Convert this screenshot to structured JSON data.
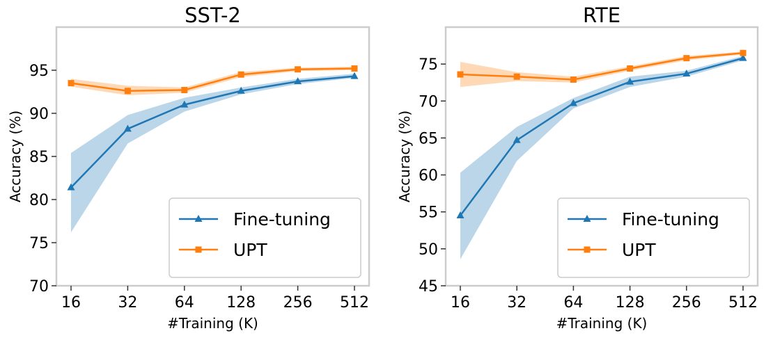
{
  "chart_data": [
    {
      "type": "line",
      "title": "SST-2",
      "xlabel": "#Training (K)",
      "ylabel": "Accuracy (%)",
      "categories": [
        "16",
        "32",
        "64",
        "128",
        "256",
        "512"
      ],
      "xscale": "log2",
      "ylim": [
        70,
        100
      ],
      "yticks": [
        70,
        75,
        80,
        85,
        90,
        95
      ],
      "grid": false,
      "legend_position": "lower-right",
      "series": [
        {
          "name": "Fine-tuning",
          "color": "#1f77b4",
          "marker": "triangle",
          "values": [
            81.4,
            88.2,
            91.0,
            92.6,
            93.7,
            94.3
          ],
          "lower": [
            76.2,
            86.5,
            90.2,
            92.2,
            93.4,
            94.1
          ],
          "upper": [
            85.4,
            89.8,
            91.8,
            93.0,
            94.0,
            94.6
          ]
        },
        {
          "name": "UPT",
          "color": "#ff7f0e",
          "marker": "square",
          "values": [
            93.5,
            92.6,
            92.7,
            94.5,
            95.1,
            95.2
          ],
          "lower": [
            93.1,
            92.1,
            92.4,
            94.2,
            94.9,
            95.0
          ],
          "upper": [
            94.0,
            93.2,
            93.0,
            94.8,
            95.3,
            95.4
          ]
        }
      ]
    },
    {
      "type": "line",
      "title": "RTE",
      "xlabel": "#Training (K)",
      "ylabel": "Accuracy (%)",
      "categories": [
        "16",
        "32",
        "64",
        "128",
        "256",
        "512"
      ],
      "xscale": "log2",
      "ylim": [
        45,
        80
      ],
      "yticks": [
        45,
        50,
        55,
        60,
        65,
        70,
        75
      ],
      "grid": false,
      "legend_position": "lower-right",
      "series": [
        {
          "name": "Fine-tuning",
          "color": "#1f77b4",
          "marker": "triangle",
          "values": [
            54.5,
            64.7,
            69.7,
            72.6,
            73.7,
            75.8
          ],
          "lower": [
            48.6,
            61.9,
            69.0,
            71.9,
            73.3,
            75.5
          ],
          "upper": [
            60.3,
            66.5,
            70.4,
            73.3,
            74.1,
            76.1
          ]
        },
        {
          "name": "UPT",
          "color": "#ff7f0e",
          "marker": "square",
          "values": [
            73.6,
            73.3,
            72.9,
            74.4,
            75.8,
            76.5
          ],
          "lower": [
            71.9,
            72.7,
            72.5,
            74.1,
            75.5,
            76.3
          ],
          "upper": [
            75.3,
            73.9,
            73.3,
            74.7,
            76.1,
            76.7
          ]
        }
      ]
    }
  ]
}
